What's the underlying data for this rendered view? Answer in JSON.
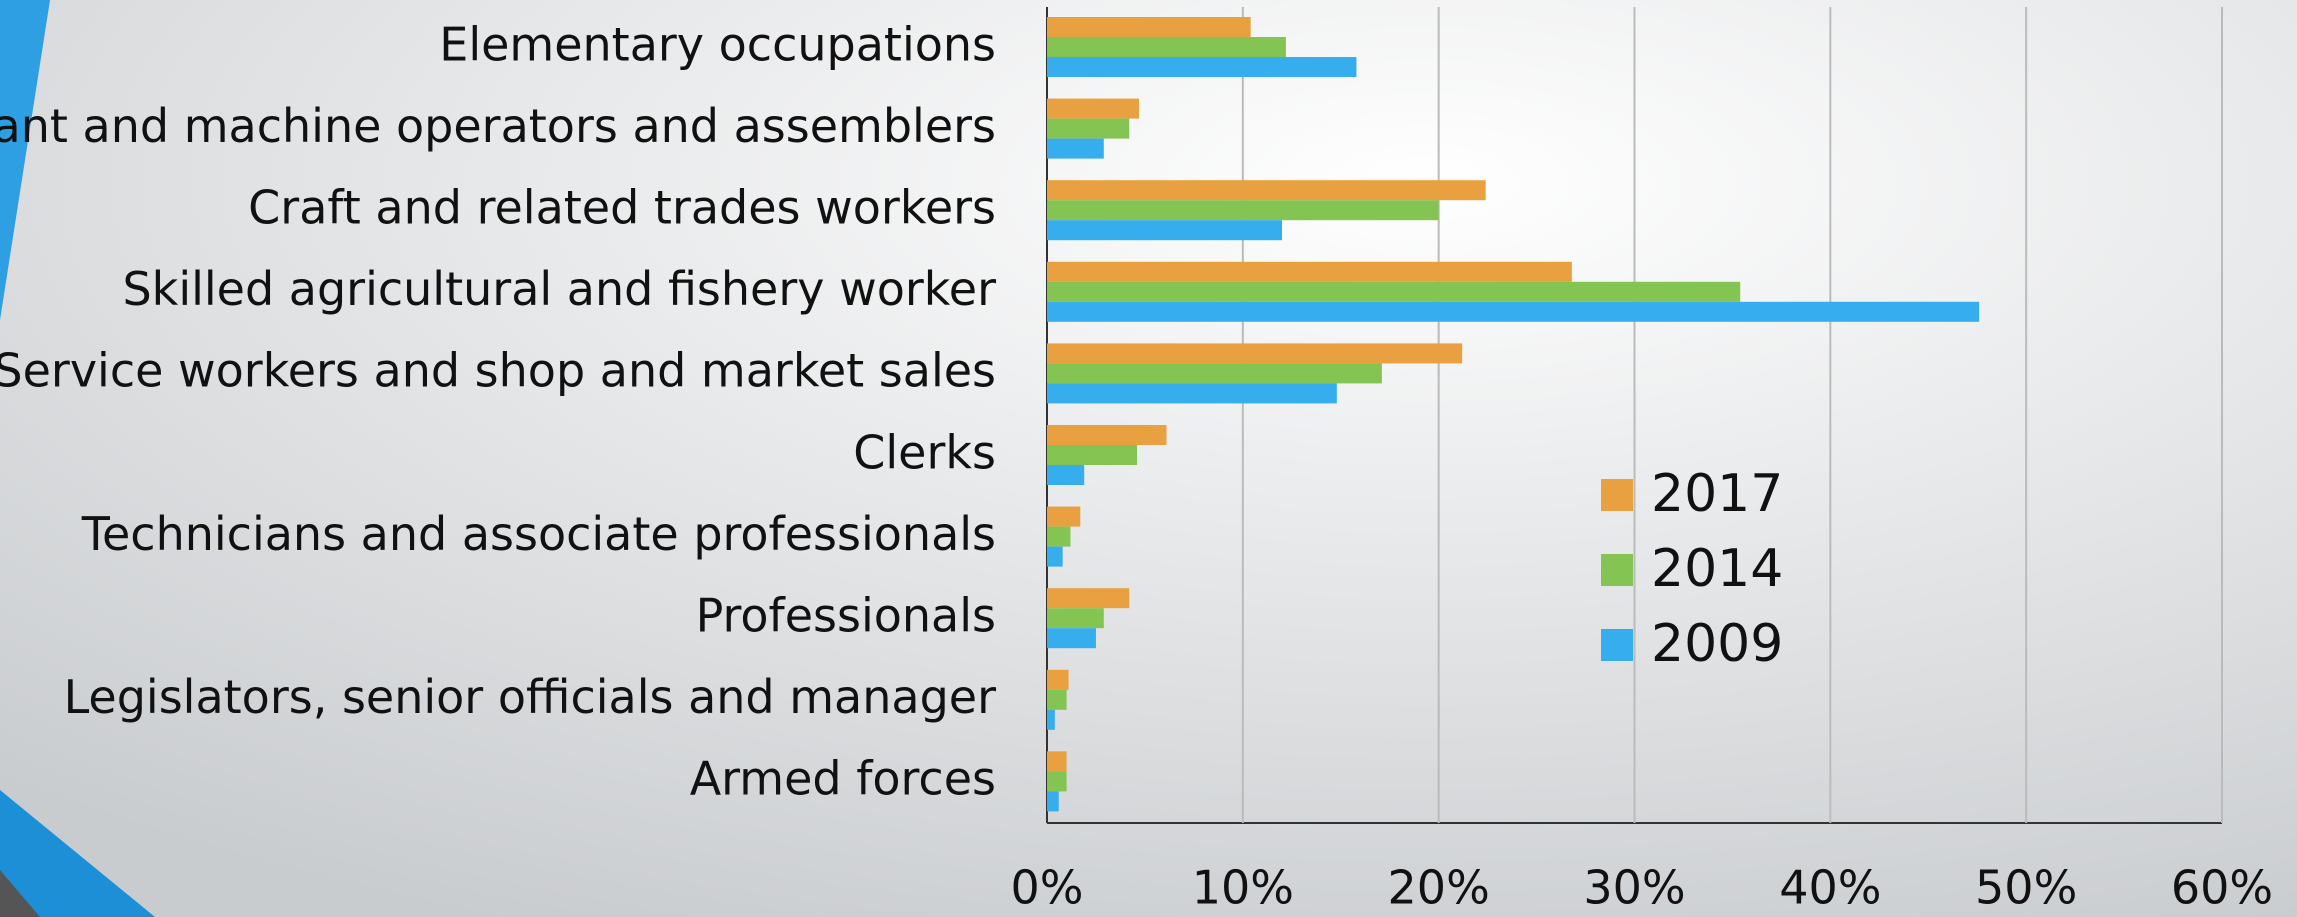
{
  "chart_data": {
    "type": "bar",
    "orientation": "horizontal",
    "categories": [
      "Elementary occupations",
      "Plant and machine operators and assemblers",
      "Craft and related trades workers",
      "Skilled agricultural and fishery worker",
      "Service workers and shop and market sales",
      "Clerks",
      "Technicians and associate professionals",
      "Professionals",
      "Legislators, senior officials and manager",
      "Armed forces"
    ],
    "series": [
      {
        "name": "2017",
        "color": "#e8a040",
        "values": [
          10.4,
          4.7,
          22.4,
          26.8,
          21.2,
          6.1,
          1.7,
          4.2,
          1.1,
          1.0
        ]
      },
      {
        "name": "2014",
        "color": "#84c453",
        "values": [
          12.2,
          4.2,
          20.0,
          35.4,
          17.1,
          4.6,
          1.2,
          2.9,
          1.0,
          1.0
        ]
      },
      {
        "name": "2009",
        "color": "#36aded",
        "values": [
          15.8,
          2.9,
          12.0,
          47.6,
          14.8,
          1.9,
          0.8,
          2.5,
          0.4,
          0.6
        ]
      }
    ],
    "xlim": [
      0,
      60
    ],
    "xticks": [
      {
        "value": 0,
        "label": "0%"
      },
      {
        "value": 10,
        "label": "10%"
      },
      {
        "value": 20,
        "label": "20%"
      },
      {
        "value": 30,
        "label": "30%"
      },
      {
        "value": 40,
        "label": "40%"
      },
      {
        "value": 50,
        "label": "50%"
      },
      {
        "value": 60,
        "label": "60%"
      }
    ],
    "grid": true
  }
}
